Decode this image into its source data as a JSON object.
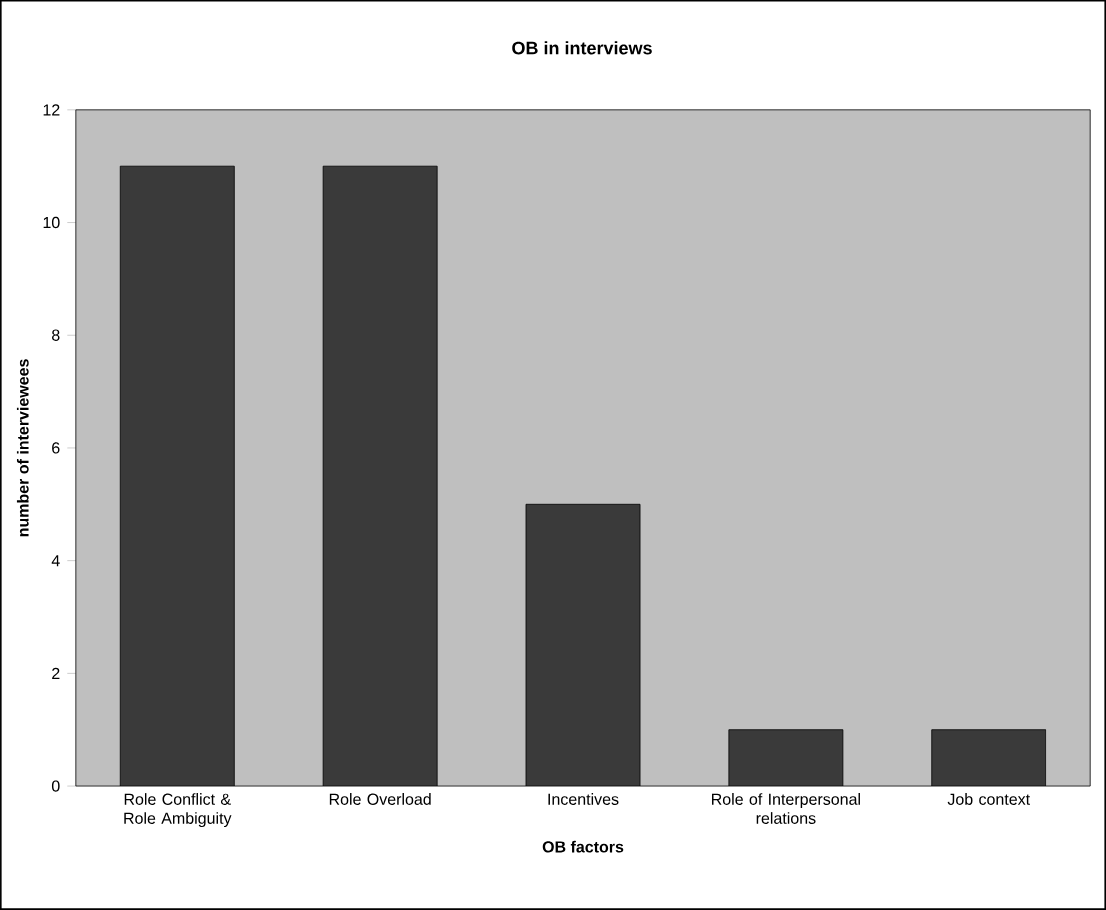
{
  "chart_data": {
    "type": "bar",
    "title": "OB in interviews",
    "xlabel": "OB factors",
    "ylabel": "number of interviewees",
    "categories": [
      "Role Conflict & Role Ambiguity",
      "Role Overload",
      "Incentives",
      "Role of Interpersonal relations",
      "Job context"
    ],
    "values": [
      11,
      11,
      5,
      1,
      1
    ],
    "color": "#3a3a3a",
    "ylim": [
      0,
      12
    ],
    "yticks": [
      0,
      2,
      4,
      6,
      8,
      10,
      12
    ]
  }
}
